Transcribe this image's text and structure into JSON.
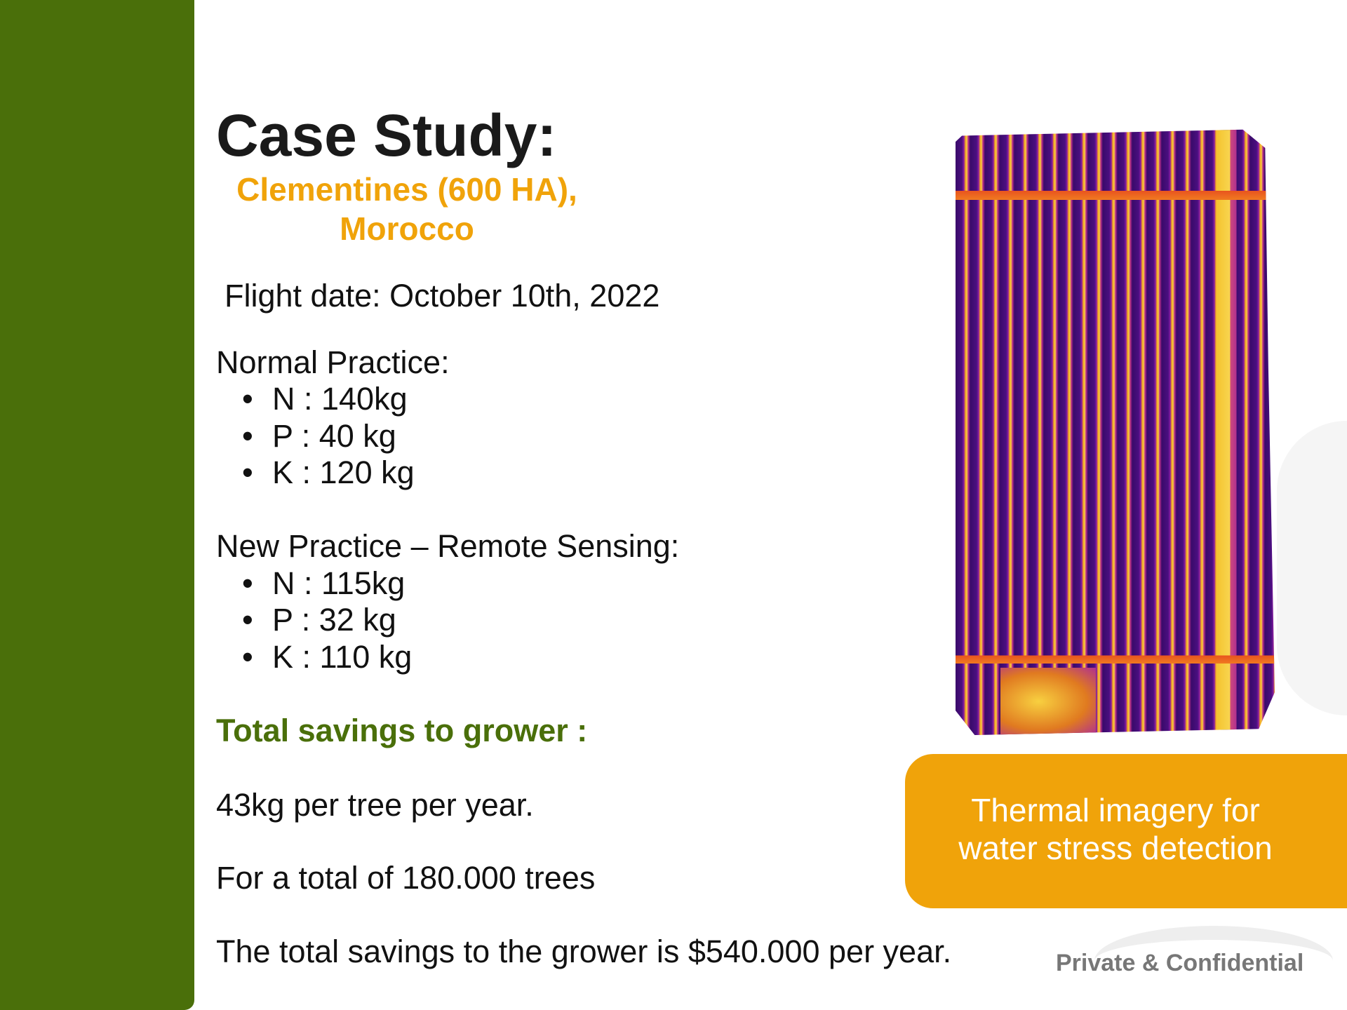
{
  "title": "Case Study:",
  "subtitle": [
    "Clementines (600 HA),",
    "Morocco"
  ],
  "flight_date": "Flight date: October 10th, 2022",
  "normal_practice": {
    "heading": "Normal Practice:",
    "items": [
      "N : 140kg",
      "P : 40 kg",
      "K : 120 kg"
    ]
  },
  "new_practice": {
    "heading": "New Practice – Remote Sensing:",
    "items": [
      "N : 115kg",
      "P : 32 kg",
      "K : 110 kg"
    ]
  },
  "savings": {
    "heading": "Total savings to grower :",
    "per_tree": "43kg per tree per year.",
    "trees": "For a total of 180.000 trees",
    "total": "The total savings to the grower is $540.000 per year."
  },
  "callout": [
    "Thermal imagery for",
    "water stress detection"
  ],
  "footer": "Private & Confidential",
  "colors": {
    "green": "#4a6f0a",
    "orange": "#f0a30a"
  }
}
